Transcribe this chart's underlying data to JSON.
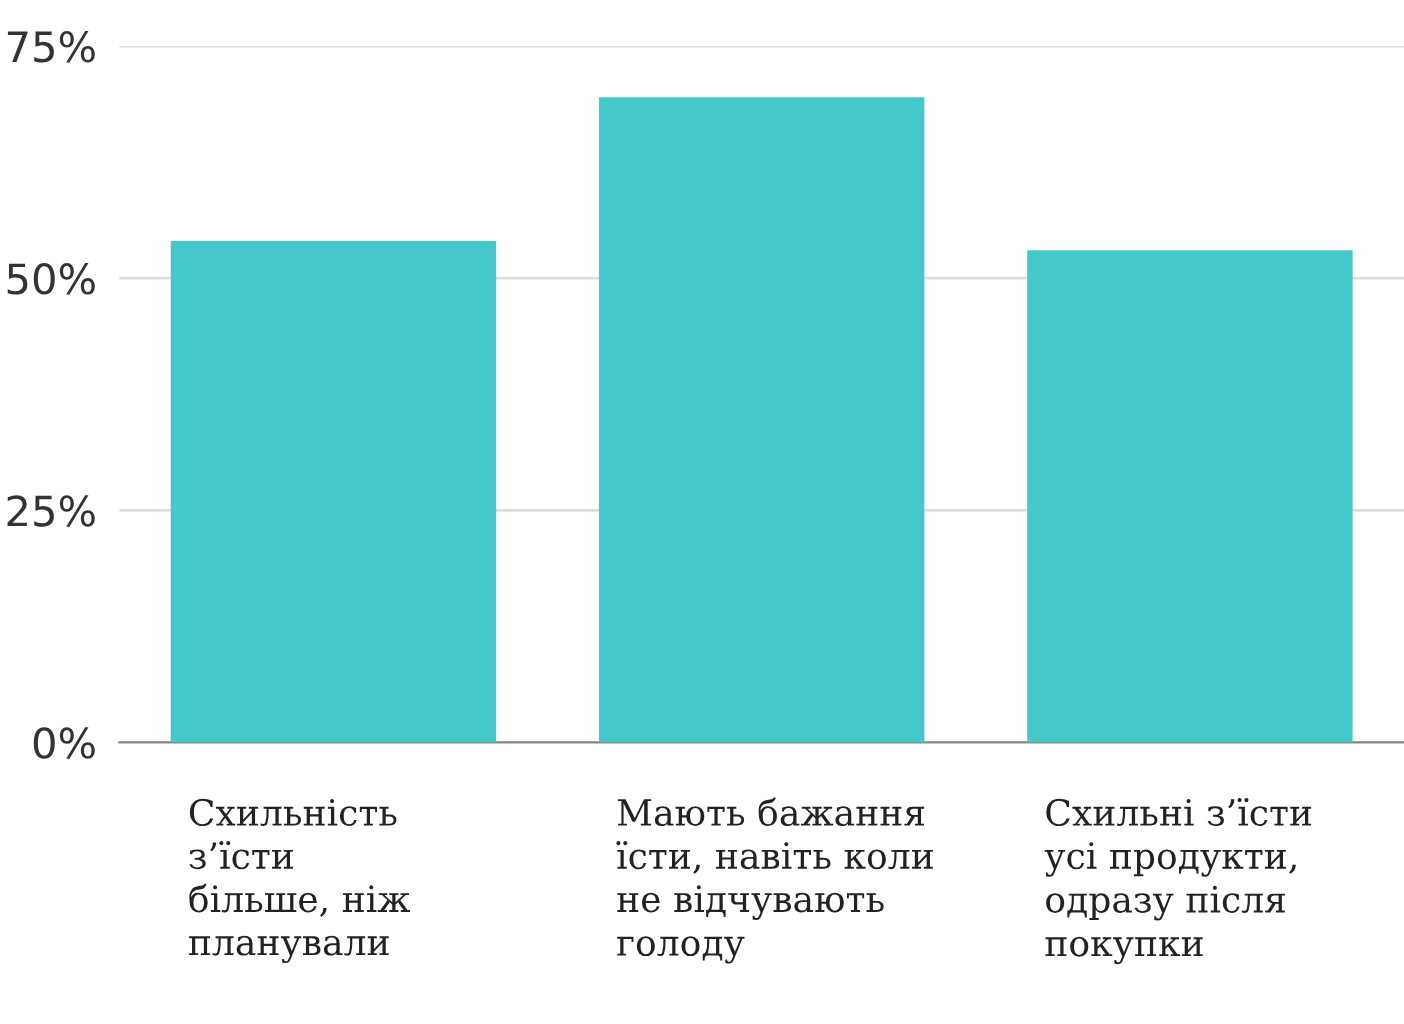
{
  "chart_data": {
    "type": "bar",
    "categories": [
      "Схильність\nз’їсти\nбільше, ніж\nпланували",
      "Мають бажання\nїсти, навіть коли\nне відчувають\nголоду",
      "Схильні з’їсти\nусі продукти,\nодразу після\nпокупки"
    ],
    "values": [
      54,
      69.5,
      53
    ],
    "color": "#45c8cc",
    "ylim": [
      0,
      75
    ],
    "yticks": [
      {
        "value": 0,
        "label": "0%"
      },
      {
        "value": 25,
        "label": "25%"
      },
      {
        "value": 50,
        "label": "50%"
      },
      {
        "value": 75,
        "label": "75%"
      }
    ],
    "grid": "y"
  }
}
